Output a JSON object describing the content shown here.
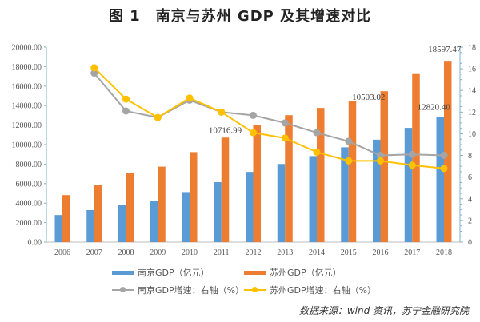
{
  "title": "图 1　南京与苏州 GDP 及其增速对比",
  "source": "数据来源：wind 资讯，苏宁金融研究院",
  "colors": {
    "nanjing_gdp": "#5b9bd5",
    "suzhou_gdp": "#ed7d31",
    "nanjing_growth": "#a5a5a5",
    "suzhou_growth": "#ffc000",
    "axis": "#7fb2c8"
  },
  "chart_data": {
    "type": "bar+line",
    "categories": [
      "2006",
      "2007",
      "2008",
      "2009",
      "2010",
      "2011",
      "2012",
      "2013",
      "2014",
      "2015",
      "2016",
      "2017",
      "2018"
    ],
    "left_axis": {
      "ylim": [
        0,
        20000
      ],
      "ticks": [
        "0.00",
        "2000.00",
        "4000.00",
        "6000.00",
        "8000.00",
        "10000.00",
        "12000.00",
        "14000.00",
        "16000.00",
        "18000.00",
        "20000.00"
      ]
    },
    "right_axis": {
      "ylim": [
        0,
        18
      ],
      "ticks": [
        "0",
        "2",
        "4",
        "6",
        "8",
        "10",
        "12",
        "14",
        "16",
        "18"
      ]
    },
    "grid": false,
    "legend_position": "bottom",
    "series": [
      {
        "name": "南京GDP（亿元）",
        "type": "bar",
        "axis": "left",
        "values": [
          2774,
          3283,
          3775,
          4230,
          5131,
          6146,
          7202,
          8012,
          8821,
          9721,
          10503.02,
          11715,
          12820.4
        ]
      },
      {
        "name": "苏州GDP（亿元）",
        "type": "bar",
        "axis": "left",
        "values": [
          4820,
          5850,
          7078,
          7740,
          9229,
          10716.99,
          12011,
          13016,
          13761,
          14504,
          15475,
          17319,
          18597.47
        ]
      },
      {
        "name": "南京GDP增速：右轴（%）",
        "type": "line",
        "axis": "right",
        "values": [
          null,
          15.6,
          12.1,
          11.5,
          13.1,
          12.0,
          11.7,
          11.0,
          10.1,
          9.3,
          8.0,
          8.1,
          8.0
        ]
      },
      {
        "name": "苏州GDP增速：右轴（%）",
        "type": "line",
        "axis": "right",
        "values": [
          null,
          16.1,
          13.2,
          11.5,
          13.3,
          12.0,
          10.1,
          9.6,
          8.3,
          7.5,
          7.5,
          7.1,
          6.8
        ]
      }
    ],
    "data_labels": [
      {
        "series": 1,
        "index": 5,
        "text": "10716.99"
      },
      {
        "series": 0,
        "index": 10,
        "text": "10503.02"
      },
      {
        "series": 0,
        "index": 12,
        "text": "12820.40"
      },
      {
        "series": 1,
        "index": 12,
        "text": "18597.47"
      }
    ]
  }
}
